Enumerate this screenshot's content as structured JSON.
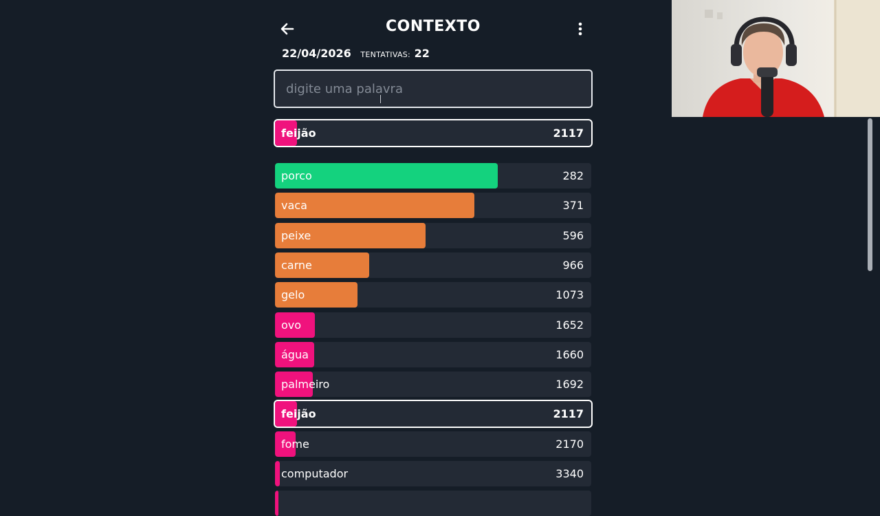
{
  "header": {
    "title": "CONTEXTO",
    "back_icon": "arrow-left-icon",
    "menu_icon": "kebab-menu-icon"
  },
  "meta": {
    "date": "22/04/2026",
    "attempts_label": "TENTATIVAS:",
    "attempts_value": "22"
  },
  "search": {
    "placeholder": "digite uma palavra",
    "value": ""
  },
  "colors": {
    "green": "#14d27e",
    "orange": "#e77d3a",
    "pink": "#f0127d",
    "row_bg": "#232a35",
    "page_bg": "#151d27"
  },
  "last_guess": {
    "word": "feijão",
    "rank": "2117",
    "color": "#f0127d",
    "closeness": 0.07
  },
  "guesses": [
    {
      "word": "porco",
      "rank": "282",
      "color": "#14d27e",
      "closeness": 0.705
    },
    {
      "word": "vaca",
      "rank": "371",
      "color": "#e77d3a",
      "closeness": 0.63
    },
    {
      "word": "peixe",
      "rank": "596",
      "color": "#e77d3a",
      "closeness": 0.475
    },
    {
      "word": "carne",
      "rank": "966",
      "color": "#e77d3a",
      "closeness": 0.298
    },
    {
      "word": "gelo",
      "rank": "1073",
      "color": "#e77d3a",
      "closeness": 0.26
    },
    {
      "word": "ovo",
      "rank": "1652",
      "color": "#f0127d",
      "closeness": 0.125
    },
    {
      "word": "água",
      "rank": "1660",
      "color": "#f0127d",
      "closeness": 0.124
    },
    {
      "word": "palmeiro",
      "rank": "1692",
      "color": "#f0127d",
      "closeness": 0.12
    },
    {
      "word": "feijão",
      "rank": "2117",
      "color": "#f0127d",
      "closeness": 0.07,
      "current": true
    },
    {
      "word": "fome",
      "rank": "2170",
      "color": "#f0127d",
      "closeness": 0.065
    },
    {
      "word": "computador",
      "rank": "3340",
      "color": "#f0127d",
      "closeness": 0.015
    },
    {
      "word": "",
      "rank": "",
      "color": "#f0127d",
      "closeness": 0.01
    }
  ],
  "webcam": {
    "description_icon": "webcam-person-icon"
  }
}
